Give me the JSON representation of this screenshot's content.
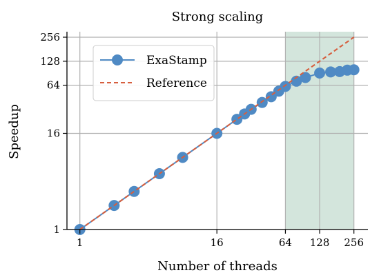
{
  "chart_data": {
    "type": "line",
    "title": "Strong scaling",
    "xlabel": "Number of threads",
    "ylabel": "Speedup",
    "xscale": "log2",
    "yscale": "log2",
    "xlim": [
      0.77,
      340
    ],
    "ylim": [
      1,
      300
    ],
    "x_ticks": [
      {
        "value": 1,
        "label": "1"
      },
      {
        "value": 16,
        "label": "16"
      },
      {
        "value": 64,
        "label": "64"
      },
      {
        "value": 128,
        "label": "128"
      },
      {
        "value": 256,
        "label": "256"
      }
    ],
    "y_ticks": [
      {
        "value": 1,
        "label": "1"
      },
      {
        "value": 16,
        "label": "16"
      },
      {
        "value": 64,
        "label": "64"
      },
      {
        "value": 128,
        "label": "128"
      },
      {
        "value": 256,
        "label": "256"
      }
    ],
    "grid": true,
    "legend_position": "top-left",
    "shaded_region": {
      "x_start": 64,
      "x_end": 256,
      "color": "#d3e5dc"
    },
    "series": [
      {
        "name": "ExaStamp",
        "style": "line-markers",
        "color": "#4f8ac4",
        "x": [
          1,
          2,
          3,
          5,
          8,
          16,
          24,
          28,
          32,
          40,
          48,
          56,
          64,
          80,
          96,
          128,
          160,
          192,
          224,
          256
        ],
        "y": [
          1,
          2,
          3,
          5,
          8,
          16,
          24,
          28,
          32,
          39,
          46,
          54,
          62,
          72,
          80,
          91,
          94,
          95,
          99,
          100
        ]
      },
      {
        "name": "Reference",
        "style": "dashed",
        "color": "#d65f3f",
        "x": [
          1,
          256
        ],
        "y": [
          1,
          256
        ]
      }
    ]
  }
}
